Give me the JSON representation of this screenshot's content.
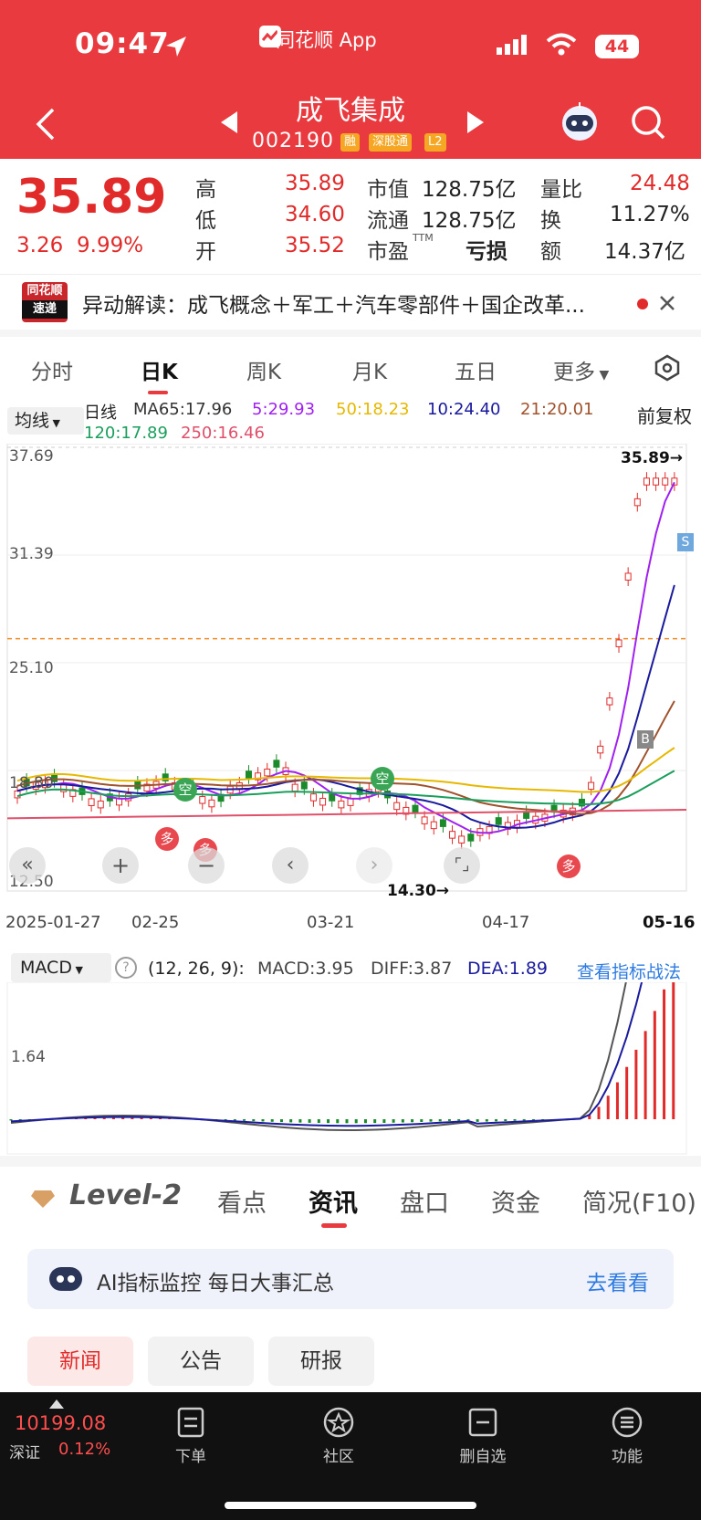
{
  "status": {
    "time": "09:47",
    "battery": "44",
    "app": "同花顺 App"
  },
  "header": {
    "title": "成飞集成",
    "code": "002190",
    "tags": [
      "融",
      "深股通",
      "L2"
    ]
  },
  "quote": {
    "price": "35.89",
    "change": "3.26",
    "change_pct": "9.99%",
    "high_label": "高",
    "high": "35.89",
    "low_label": "低",
    "low": "34.60",
    "open_label": "开",
    "open": "35.52",
    "mcap_label": "市值",
    "mcap": "128.75亿",
    "float_label": "流通",
    "float": "128.75亿",
    "pe_label": "市盈",
    "pe_sup": "TTM",
    "pe": "亏损",
    "vol_ratio_label": "量比",
    "vol_ratio": "24.48",
    "turnover_label": "换",
    "turnover": "11.27%",
    "amount_label": "额",
    "amount": "14.37亿"
  },
  "news_banner": {
    "logo_top": "同花顺",
    "logo_bottom": "速递",
    "text": "异动解读：成飞概念＋军工＋汽车零部件＋国企改革..."
  },
  "period_tabs": [
    "分时",
    "日K",
    "周K",
    "月K",
    "五日",
    "更多"
  ],
  "ma_bar": {
    "selector": "均线",
    "label": "日线",
    "adj": "前复权",
    "ma65": "MA65:17.96",
    "ma5": "5:29.93",
    "ma50": "50:18.23",
    "ma10": "10:24.40",
    "ma21": "21:20.01",
    "ma120": "120:17.89",
    "ma250": "250:16.46"
  },
  "colors": {
    "ma5": "#a020f0",
    "ma50": "#e6b800",
    "ma10": "#1a1a9e",
    "ma21": "#a0522d",
    "ma120": "#1a9e5c",
    "ma250": "#e0506a",
    "up": "#e12b2b",
    "down": "#1a8a2a",
    "accent": "#e83a3f"
  },
  "kline": {
    "y_ticks": [
      "37.69",
      "31.39",
      "25.10",
      "18.80",
      "12.50"
    ],
    "x_ticks": [
      "2025-01-27",
      "02-25",
      "03-21",
      "04-17",
      "05-16"
    ],
    "max_label": "35.89→",
    "min_label": "14.30→",
    "markers": {
      "kong": "空",
      "duo": "多",
      "s": "S",
      "b": "B"
    }
  },
  "macd": {
    "selector": "MACD",
    "params": "(12, 26, 9):",
    "macd": "MACD:3.95",
    "diff": "DIFF:3.87",
    "dea": "DEA:1.89",
    "link": "查看指标战法",
    "y_tick": "1.64"
  },
  "bottom_tabs": {
    "level2": "Level-2",
    "items": [
      "看点",
      "资讯",
      "盘口",
      "资金",
      "简况(F10)"
    ],
    "active": "资讯"
  },
  "ai_card": {
    "text": "AI指标监控 每日大事汇总",
    "link": "去看看"
  },
  "chips": [
    "新闻",
    "公告",
    "研报"
  ],
  "footer": {
    "index_value": "10199.08",
    "index_name": "深证",
    "index_pct": "0.12%",
    "items": [
      "下单",
      "社区",
      "删自选",
      "功能"
    ]
  }
}
